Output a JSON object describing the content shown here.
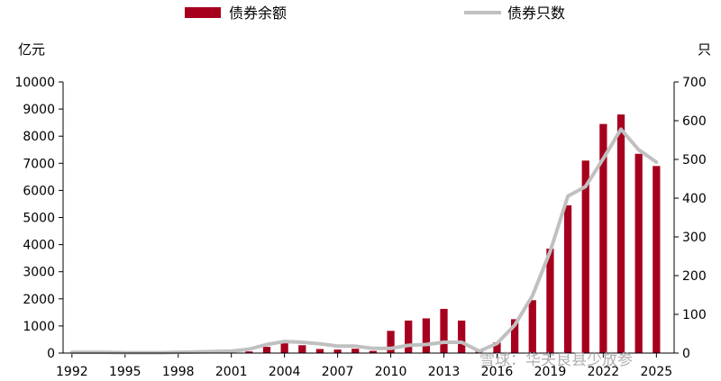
{
  "chart_data": {
    "type": "bar",
    "left_unit": "亿元",
    "right_unit": "只",
    "years": [
      1992,
      1993,
      1994,
      1995,
      1996,
      1997,
      1998,
      1999,
      2000,
      2001,
      2002,
      2003,
      2004,
      2005,
      2006,
      2007,
      2008,
      2009,
      2010,
      2011,
      2012,
      2013,
      2014,
      2015,
      2016,
      2017,
      2018,
      2019,
      2020,
      2021,
      2022,
      2023,
      2024,
      2025
    ],
    "x_tick_labels": [
      "1992",
      "1995",
      "1998",
      "2001",
      "2004",
      "2007",
      "2010",
      "2013",
      "2016",
      "2019",
      "2022",
      "2025"
    ],
    "ylim_left": [
      0,
      10000
    ],
    "y_ticks_left": [
      "0",
      "1000",
      "2000",
      "3000",
      "4000",
      "5000",
      "6000",
      "7000",
      "8000",
      "9000",
      "10000"
    ],
    "ylim_right": [
      0,
      700
    ],
    "y_ticks_right": [
      "0",
      "100",
      "200",
      "300",
      "400",
      "500",
      "600",
      "700"
    ],
    "series": [
      {
        "name": "债券余额",
        "kind": "bar",
        "axis": "left",
        "color": "#a6001e",
        "values": [
          10,
          10,
          10,
          10,
          10,
          10,
          10,
          20,
          20,
          20,
          60,
          230,
          380,
          290,
          150,
          130,
          160,
          80,
          820,
          1200,
          1280,
          1630,
          1200,
          120,
          400,
          1250,
          1950,
          3850,
          5450,
          7100,
          8450,
          8800,
          7350,
          6900
        ]
      },
      {
        "name": "债券只数",
        "kind": "line",
        "axis": "right",
        "color": "#c0c0c0",
        "values": [
          2,
          2,
          2,
          1,
          1,
          1,
          2,
          3,
          4,
          5,
          10,
          22,
          30,
          28,
          24,
          18,
          18,
          12,
          12,
          20,
          22,
          28,
          28,
          5,
          25,
          72,
          148,
          262,
          405,
          430,
          502,
          578,
          525,
          493
        ]
      }
    ],
    "watermark": "雪球：华夫良县少放参"
  }
}
